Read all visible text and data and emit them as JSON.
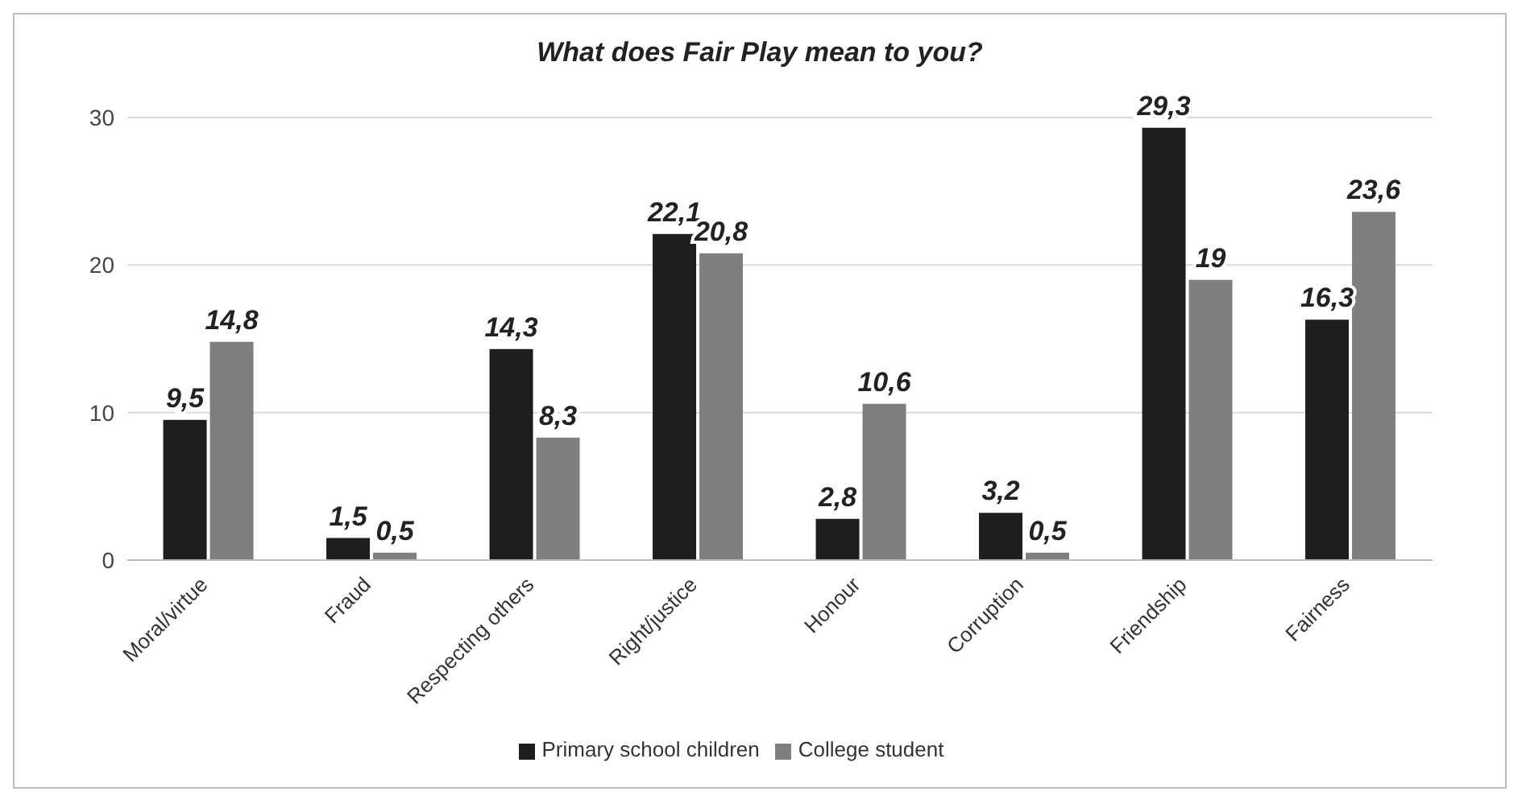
{
  "chart_data": {
    "type": "bar",
    "title": "What does Fair Play mean to you?",
    "categories": [
      "Moral/virtue",
      "Fraud",
      "Respecting others",
      "Right/justice",
      "Honour",
      "Corruption",
      "Friendship",
      "Fairness"
    ],
    "series": [
      {
        "name": "Primary school children",
        "color": "#1e1e1e",
        "values": [
          9.5,
          1.5,
          14.3,
          22.1,
          2.8,
          3.2,
          29.3,
          16.3
        ],
        "value_labels": [
          "9,5",
          "1,5",
          "14,3",
          "22,1",
          "2,8",
          "3,2",
          "29,3",
          "16,3"
        ]
      },
      {
        "name": "College student",
        "color": "#7f7f7f",
        "values": [
          14.8,
          0.5,
          8.3,
          20.8,
          10.6,
          0.5,
          19,
          23.6
        ],
        "value_labels": [
          "14,8",
          "0,5",
          "8,3",
          "20,8",
          "10,6",
          "0,5",
          "19",
          "23,6"
        ]
      }
    ],
    "ylim": [
      0,
      30
    ],
    "yticks": [
      0,
      10,
      20,
      30
    ],
    "grid": "y",
    "legend": "bottom"
  }
}
